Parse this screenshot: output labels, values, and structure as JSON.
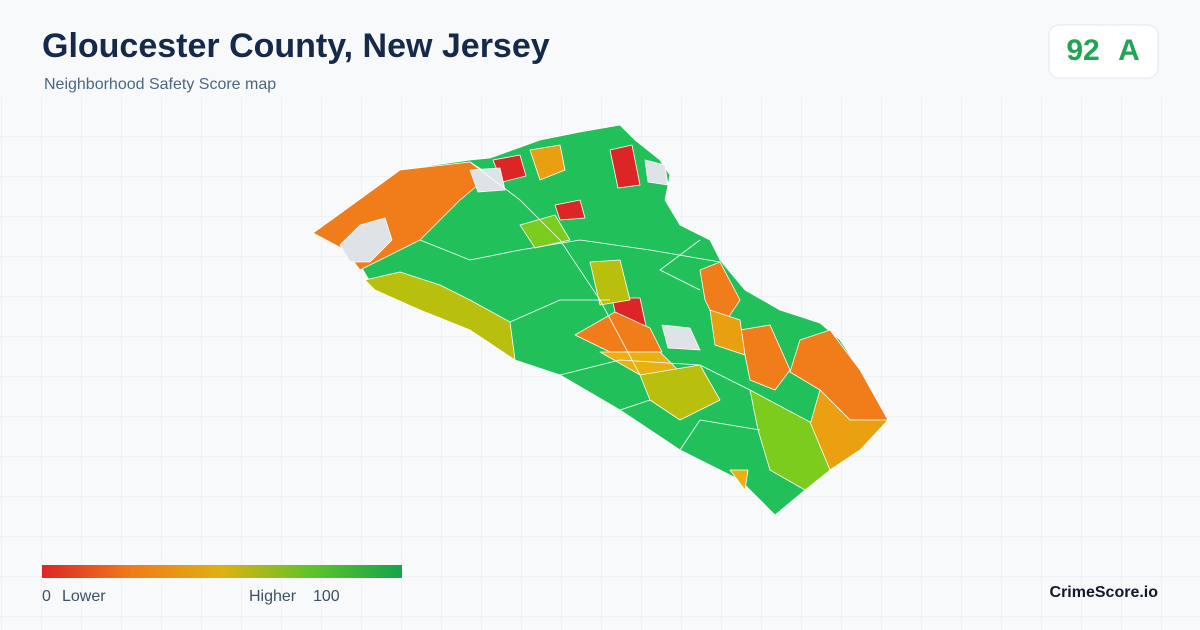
{
  "header": {
    "title": "Gloucester County, New Jersey",
    "subtitle": "Neighborhood Safety Score map"
  },
  "score": {
    "value": "92",
    "grade": "A"
  },
  "legend": {
    "min": "0",
    "min_label": "Lower",
    "max_label": "Higher",
    "max": "100"
  },
  "brand": "CrimeScore.io"
}
